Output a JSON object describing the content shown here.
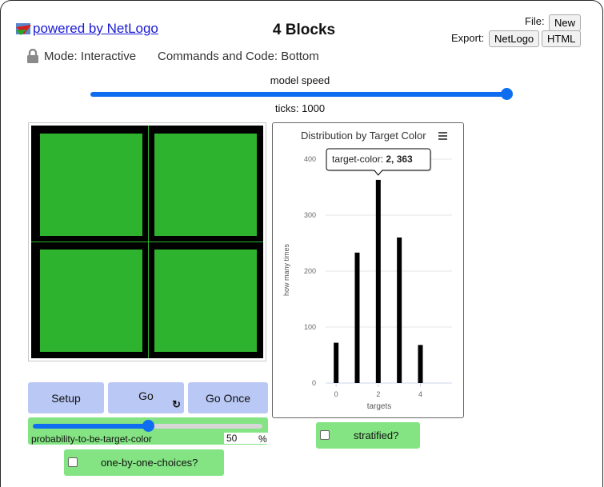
{
  "header": {
    "powered_by": " powered by NetLogo",
    "model_title": "4 Blocks",
    "file_label": "File:",
    "new_button": "New",
    "export_label": "Export:",
    "export_netlogo": "NetLogo",
    "export_html": "HTML",
    "mode_text": "Mode: Interactive",
    "commands_text": "Commands and Code: Bottom"
  },
  "speed": {
    "label": "model speed",
    "value_fraction": 1.0,
    "ticks_text": "ticks: 1000"
  },
  "buttons": {
    "setup": "Setup",
    "go": "Go",
    "go_forever_glyph": "↻",
    "go_once": "Go Once"
  },
  "slider": {
    "label": "probability-to-be-target-color",
    "value": "50",
    "units": "%",
    "min": 0,
    "max": 100,
    "value_fraction": 0.5
  },
  "switches": {
    "stratified": "stratified?",
    "one_by_one": "one-by-one-choices?"
  },
  "colors": {
    "button_bg": "#b9c8f4",
    "widget_green": "#84e383",
    "patch_green": "#2db32d",
    "slider_blue": "#0f6ef0"
  },
  "chart_data": {
    "type": "bar",
    "title": "Distribution by Target Color",
    "xlabel": "targets",
    "ylabel": "how many times",
    "x": [
      0,
      1,
      2,
      3,
      4
    ],
    "values": [
      72,
      233,
      363,
      260,
      68
    ],
    "x_ticks": [
      0,
      2,
      4
    ],
    "y_ticks": [
      0,
      100,
      200,
      300,
      400
    ],
    "xlim": [
      -0.5,
      5.5
    ],
    "ylim": [
      0,
      410
    ],
    "grid": true,
    "tooltip": {
      "label": "target-color: ",
      "value": "2, 363"
    }
  }
}
